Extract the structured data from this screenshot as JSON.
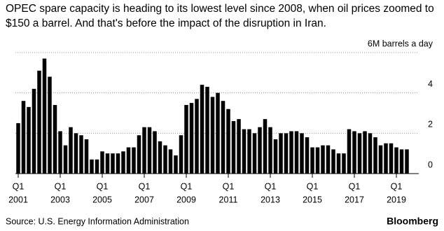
{
  "chart_data": {
    "type": "bar",
    "title": "OPEC spare capacity is heading to its lowest level since 2008, when oil prices zoomed to $150 a barrel. And that's before the impact of the disruption in Iran.",
    "source": "Source: U.S. Energy Information Administration",
    "brand": "Bloomberg",
    "categories": [
      {
        "quarter": "Q1",
        "year": "2001"
      },
      null,
      null,
      null,
      null,
      null,
      null,
      null,
      {
        "quarter": "Q1",
        "year": "2003"
      },
      null,
      null,
      null,
      null,
      null,
      null,
      null,
      {
        "quarter": "Q1",
        "year": "2005"
      },
      null,
      null,
      null,
      null,
      null,
      null,
      null,
      {
        "quarter": "Q1",
        "year": "2007"
      },
      null,
      null,
      null,
      null,
      null,
      null,
      null,
      {
        "quarter": "Q1",
        "year": "2009"
      },
      null,
      null,
      null,
      null,
      null,
      null,
      null,
      {
        "quarter": "Q1",
        "year": "2011"
      },
      null,
      null,
      null,
      null,
      null,
      null,
      null,
      {
        "quarter": "Q1",
        "year": "2013"
      },
      null,
      null,
      null,
      null,
      null,
      null,
      null,
      {
        "quarter": "Q1",
        "year": "2015"
      },
      null,
      null,
      null,
      null,
      null,
      null,
      null,
      {
        "quarter": "Q1",
        "year": "2017"
      },
      null,
      null,
      null,
      null,
      null,
      null,
      null,
      {
        "quarter": "Q1",
        "year": "2019"
      },
      null,
      null
    ],
    "values": [
      2.5,
      3.6,
      3.3,
      4.2,
      5.1,
      5.7,
      4.8,
      3.4,
      2.1,
      1.4,
      2.3,
      2.0,
      1.9,
      1.7,
      0.7,
      0.7,
      1.1,
      1.0,
      1.0,
      1.0,
      1.1,
      1.3,
      1.3,
      1.9,
      2.3,
      2.3,
      2.1,
      1.6,
      1.4,
      1.2,
      0.9,
      1.9,
      3.4,
      3.5,
      3.7,
      4.4,
      4.3,
      3.8,
      4.0,
      3.6,
      3.2,
      2.6,
      2.7,
      2.2,
      2.2,
      2.0,
      2.3,
      2.7,
      2.3,
      1.7,
      2.0,
      2.0,
      2.1,
      2.1,
      2.0,
      1.8,
      1.3,
      1.3,
      1.4,
      1.4,
      1.2,
      1.0,
      1.0,
      2.2,
      2.1,
      2.0,
      2.1,
      2.0,
      1.8,
      1.4,
      1.5,
      1.5,
      1.3,
      1.2,
      1.2
    ],
    "color": "#000000",
    "ylim": [
      0,
      6
    ],
    "yticks": [
      0,
      2,
      4,
      {
        "value": 6,
        "label": "6M barrels a day"
      }
    ],
    "grid": true
  }
}
